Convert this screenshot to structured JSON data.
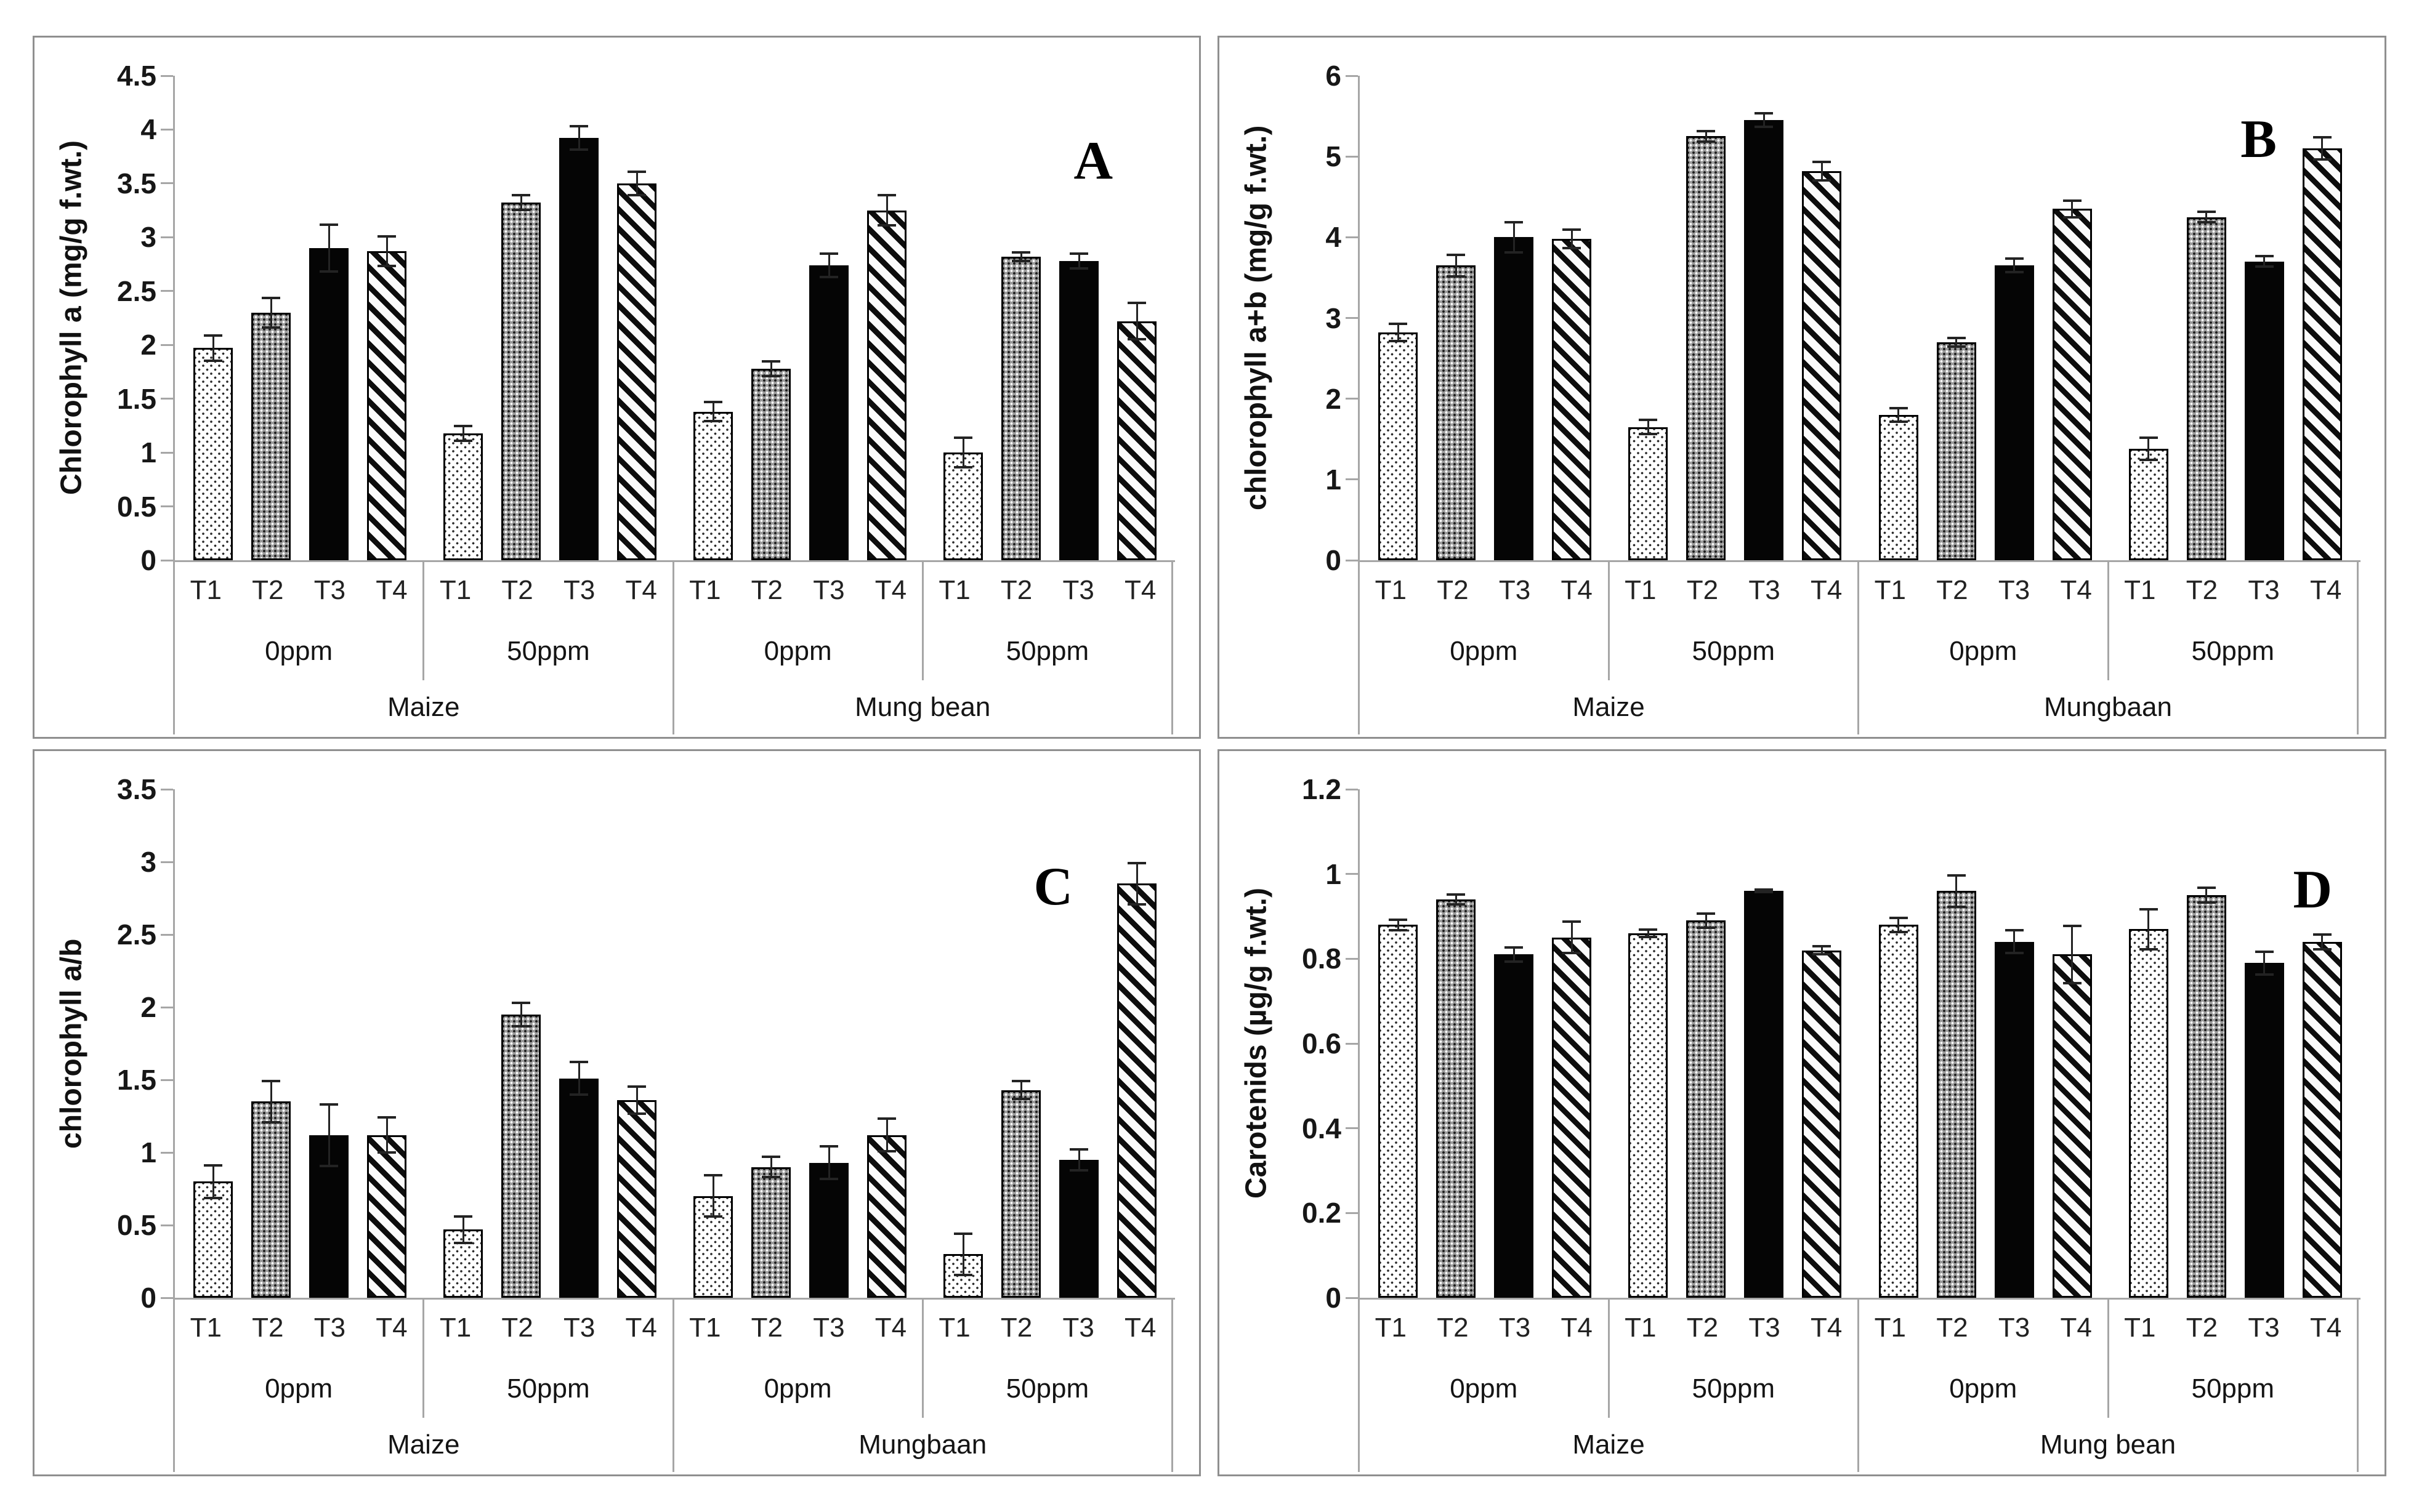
{
  "figure_title": "",
  "treatments": [
    "T1",
    "T2",
    "T3",
    "T4"
  ],
  "treatment_patterns": {
    "T1": "white-sparse-dots",
    "T2": "gray-dense-dots",
    "T3": "solid-black",
    "T4": "black-diagonal-hatch"
  },
  "colors": {
    "background": "#ffffff",
    "panel_border": "#8f8f8f",
    "axis_line": "#a6a6a6",
    "bar_black": "#050505",
    "bar_gray": "#9b9b9b",
    "error_bar": "#232323",
    "text": "#111111"
  },
  "chart_data": [
    {
      "type": "bar",
      "letter": "A",
      "ylabel": "Chlorophyll a (mg/g f.wt.)",
      "ylim": [
        0,
        4.5
      ],
      "ytick_step": 0.5,
      "ytick_values": [
        0,
        0.5,
        1,
        1.5,
        2,
        2.5,
        3,
        3.5,
        4,
        4.5
      ],
      "ytick_labels": [
        "0",
        "0.5",
        "1",
        "1.5",
        "2",
        "2.5",
        "3",
        "3.5",
        "4",
        "4.5"
      ],
      "grid": false,
      "legend": "none",
      "species_labels": [
        "Maize",
        "Mung bean"
      ],
      "groups": [
        {
          "species": "Maize",
          "dose": "0ppm",
          "values": [
            1.97,
            2.3,
            2.9,
            2.87
          ],
          "errors": [
            0.13,
            0.15,
            0.23,
            0.15
          ]
        },
        {
          "species": "Maize",
          "dose": "50ppm",
          "values": [
            1.18,
            3.32,
            3.92,
            3.5
          ],
          "errors": [
            0.08,
            0.08,
            0.12,
            0.12
          ]
        },
        {
          "species": "Mung bean",
          "dose": "0ppm",
          "values": [
            1.38,
            1.78,
            2.74,
            3.25
          ],
          "errors": [
            0.1,
            0.08,
            0.12,
            0.15
          ]
        },
        {
          "species": "Mung bean",
          "dose": "50ppm",
          "values": [
            1.0,
            2.82,
            2.78,
            2.22
          ],
          "errors": [
            0.15,
            0.05,
            0.08,
            0.18
          ]
        }
      ]
    },
    {
      "type": "bar",
      "letter": "B",
      "ylabel": "chlorophyll a+b (mg/g f.wt.)",
      "ylim": [
        0,
        6
      ],
      "ytick_step": 1,
      "ytick_values": [
        0,
        1,
        2,
        3,
        4,
        5,
        6
      ],
      "ytick_labels": [
        "0",
        "1",
        "2",
        "3",
        "4",
        "5",
        "6"
      ],
      "grid": false,
      "legend": "none",
      "species_labels": [
        "Maize",
        "Mungbaan"
      ],
      "groups": [
        {
          "species": "Maize",
          "dose": "0ppm",
          "values": [
            2.82,
            3.65,
            4.0,
            3.98
          ],
          "errors": [
            0.12,
            0.15,
            0.2,
            0.13
          ]
        },
        {
          "species": "Maize",
          "dose": "50ppm",
          "values": [
            1.65,
            5.25,
            5.45,
            4.82
          ],
          "errors": [
            0.1,
            0.08,
            0.1,
            0.13
          ]
        },
        {
          "species": "Mungbaan",
          "dose": "0ppm",
          "values": [
            1.8,
            2.7,
            3.65,
            4.35
          ],
          "errors": [
            0.1,
            0.07,
            0.1,
            0.12
          ]
        },
        {
          "species": "Mungbaan",
          "dose": "50ppm",
          "values": [
            1.38,
            4.25,
            3.7,
            5.1
          ],
          "errors": [
            0.15,
            0.08,
            0.08,
            0.15
          ]
        }
      ]
    },
    {
      "type": "bar",
      "letter": "C",
      "ylabel": "chlorophyll a/b",
      "ylim": [
        0,
        3.5
      ],
      "ytick_step": 0.5,
      "ytick_values": [
        0,
        0.5,
        1,
        1.5,
        2,
        2.5,
        3,
        3.5
      ],
      "ytick_labels": [
        "0",
        "0.5",
        "1",
        "1.5",
        "2",
        "2.5",
        "3",
        "3.5"
      ],
      "grid": false,
      "legend": "none",
      "species_labels": [
        "Maize",
        "Mungbaan"
      ],
      "groups": [
        {
          "species": "Maize",
          "dose": "0ppm",
          "values": [
            0.8,
            1.35,
            1.12,
            1.12
          ],
          "errors": [
            0.12,
            0.15,
            0.22,
            0.13
          ]
        },
        {
          "species": "Maize",
          "dose": "50ppm",
          "values": [
            0.47,
            1.95,
            1.51,
            1.36
          ],
          "errors": [
            0.1,
            0.09,
            0.12,
            0.1
          ]
        },
        {
          "species": "Mungbaan",
          "dose": "0ppm",
          "values": [
            0.7,
            0.9,
            0.93,
            1.12
          ],
          "errors": [
            0.15,
            0.08,
            0.12,
            0.12
          ]
        },
        {
          "species": "Mungbaan",
          "dose": "50ppm",
          "values": [
            0.3,
            1.43,
            0.95,
            2.85
          ],
          "errors": [
            0.15,
            0.07,
            0.08,
            0.15
          ]
        }
      ]
    },
    {
      "type": "bar",
      "letter": "D",
      "ylabel": "Carotenids (µg/g f.wt.)",
      "ylim": [
        0,
        1.2
      ],
      "ytick_step": 0.2,
      "ytick_values": [
        0,
        0.2,
        0.4,
        0.6,
        0.8,
        1,
        1.2
      ],
      "ytick_labels": [
        "0",
        "0.2",
        "0.4",
        "0.6",
        "0.8",
        "1",
        "1.2"
      ],
      "grid": false,
      "legend": "none",
      "species_labels": [
        "Maize",
        "Mung bean"
      ],
      "groups": [
        {
          "species": "Maize",
          "dose": "0ppm",
          "values": [
            0.88,
            0.94,
            0.81,
            0.85
          ],
          "errors": [
            0.015,
            0.015,
            0.02,
            0.04
          ]
        },
        {
          "species": "Maize",
          "dose": "50ppm",
          "values": [
            0.86,
            0.89,
            0.96,
            0.82
          ],
          "errors": [
            0.012,
            0.02,
            0.006,
            0.012
          ]
        },
        {
          "species": "Mung bean",
          "dose": "0ppm",
          "values": [
            0.88,
            0.96,
            0.84,
            0.81
          ],
          "errors": [
            0.02,
            0.04,
            0.03,
            0.07
          ]
        },
        {
          "species": "Mung bean",
          "dose": "50ppm",
          "values": [
            0.87,
            0.95,
            0.79,
            0.84
          ],
          "errors": [
            0.05,
            0.02,
            0.03,
            0.02
          ]
        }
      ]
    }
  ]
}
